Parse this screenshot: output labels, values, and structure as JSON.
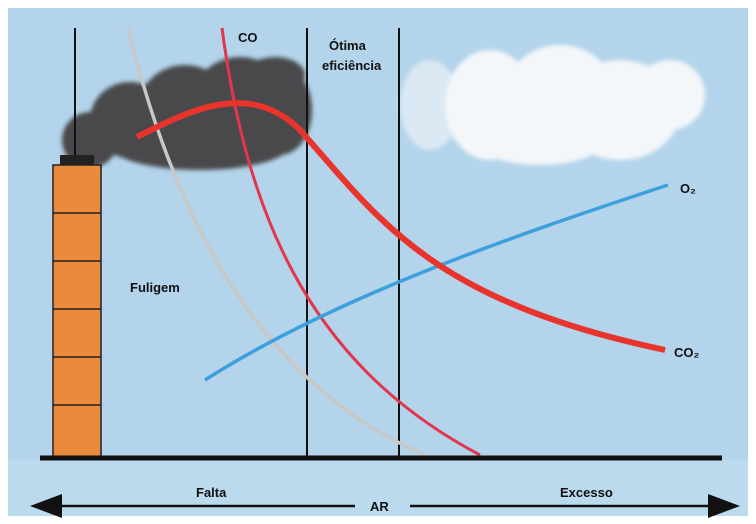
{
  "labels": {
    "co": "CO",
    "optimal": [
      "Ótima",
      "eficiência"
    ],
    "o2": "O₂",
    "co2": "CO₂",
    "soot": "Fuligem"
  },
  "axis": {
    "left": "Falta",
    "center": "AR",
    "right": "Excesso"
  }
}
